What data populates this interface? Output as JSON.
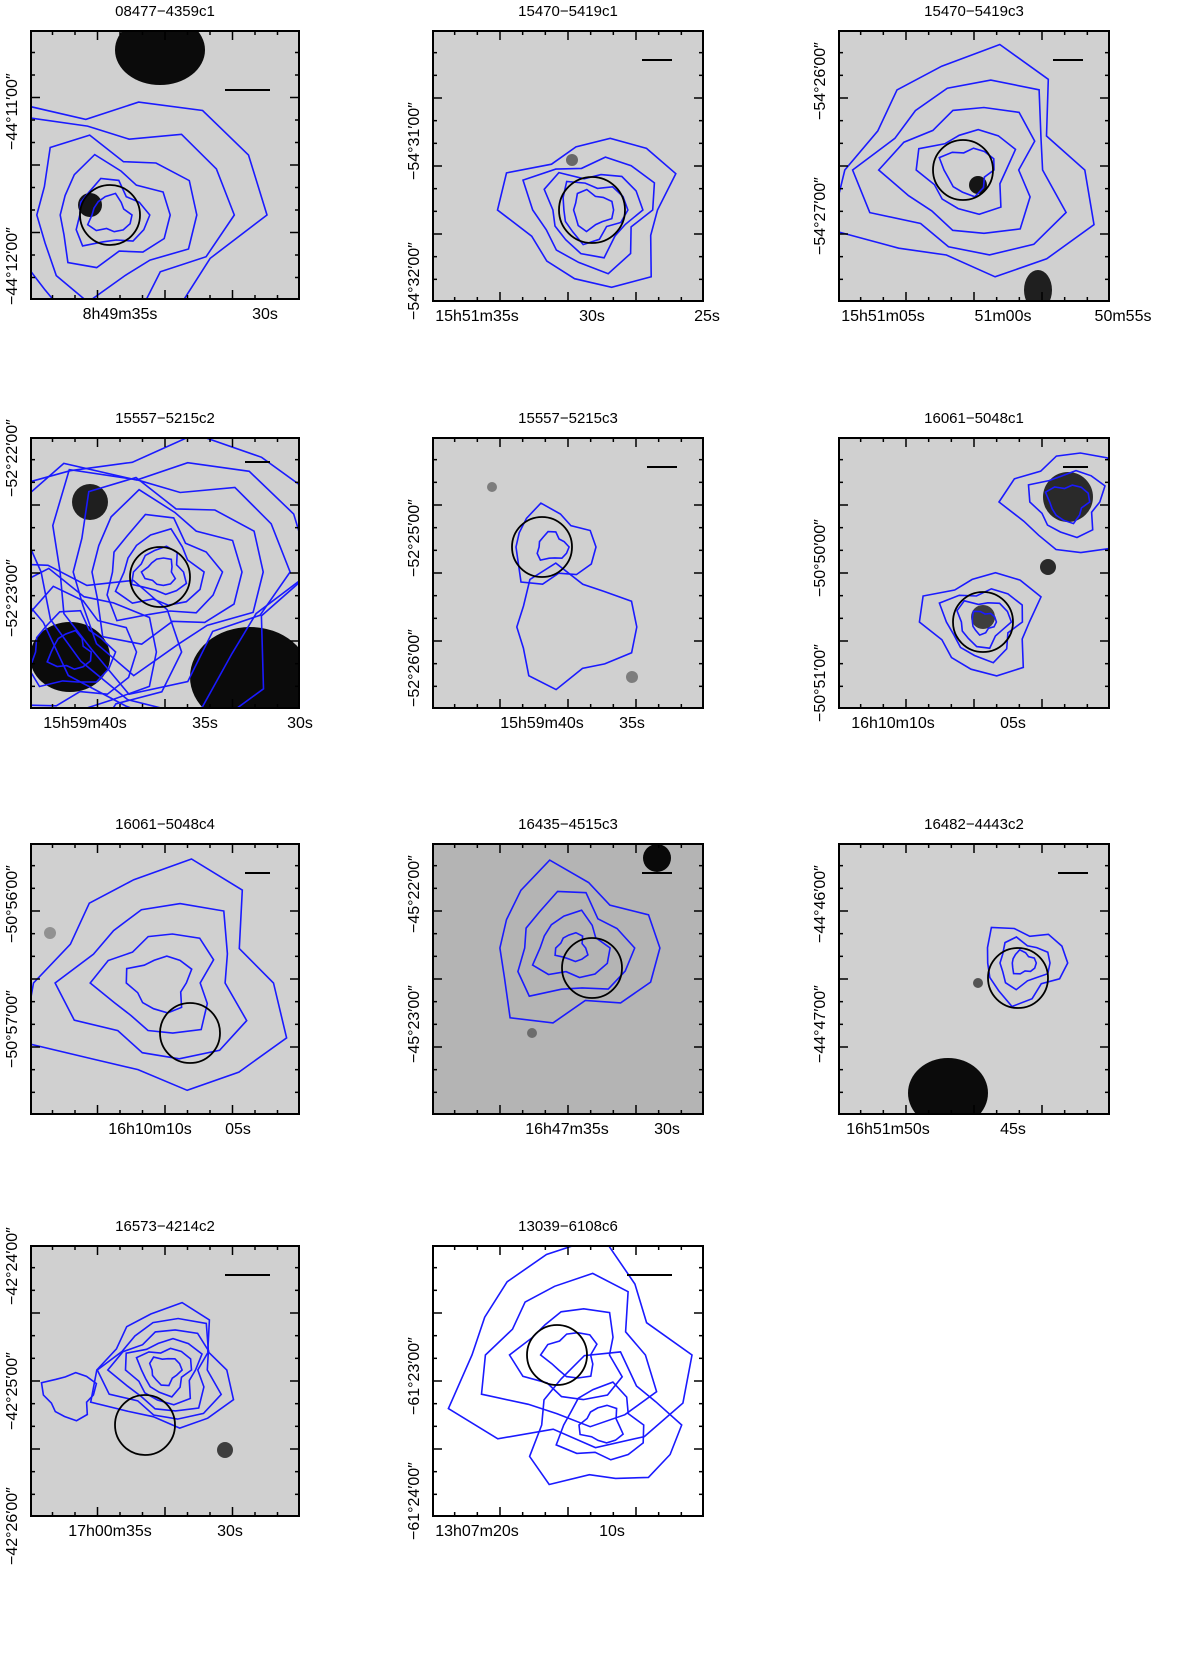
{
  "figure": {
    "panels": [
      {
        "title": "08477−4359c1",
        "ra_labels": [
          "8h49m35s",
          "30s"
        ],
        "dec_labels": [
          "−44°11′00″",
          "−44°12′00″"
        ],
        "background": "light"
      },
      {
        "title": "15470−5419c1",
        "ra_labels": [
          "15h51m35s",
          "30s",
          "25s"
        ],
        "dec_labels": [
          "−54°31′00″",
          "−54°32′00″"
        ],
        "background": "light"
      },
      {
        "title": "15470−5419c3",
        "ra_labels": [
          "15h51m05s",
          "51m00s",
          "50m55s"
        ],
        "dec_labels": [
          "−54°26′00″",
          "−54°27′00″"
        ],
        "background": "light"
      },
      {
        "title": "15557−5215c2",
        "ra_labels": [
          "15h59m40s",
          "35s",
          "30s"
        ],
        "dec_labels": [
          "−52°22′00″",
          "−52°23′00″"
        ],
        "background": "light"
      },
      {
        "title": "15557−5215c3",
        "ra_labels": [
          "15h59m40s",
          "35s"
        ],
        "dec_labels": [
          "−52°25′00″",
          "−52°26′00″"
        ],
        "background": "light"
      },
      {
        "title": "16061−5048c1",
        "ra_labels": [
          "16h10m10s",
          "05s"
        ],
        "dec_labels": [
          "−50°50′00″",
          "−50°51′00″"
        ],
        "background": "light"
      },
      {
        "title": "16061−5048c4",
        "ra_labels": [
          "16h10m10s",
          "05s"
        ],
        "dec_labels": [
          "−50°56′00″",
          "−50°57′00″"
        ],
        "background": "light"
      },
      {
        "title": "16435−4515c3",
        "ra_labels": [
          "16h47m35s",
          "30s"
        ],
        "dec_labels": [
          "−45°22′00″",
          "−45°23′00″"
        ],
        "background": "mid"
      },
      {
        "title": "16482−4443c2",
        "ra_labels": [
          "16h51m50s",
          "45s"
        ],
        "dec_labels": [
          "−44°46′00″",
          "−44°47′00″"
        ],
        "background": "light"
      },
      {
        "title": "16573−4214c2",
        "ra_labels": [
          "17h00m35s",
          "30s"
        ],
        "dec_labels": [
          "−42°24′00″",
          "−42°25′00″",
          "−42°26′00″"
        ],
        "background": "light"
      },
      {
        "title": "13039−6108c6",
        "ra_labels": [
          "13h07m20s",
          "10s"
        ],
        "dec_labels": [
          "−61°23′00″",
          "−61°24′00″"
        ],
        "background": "white"
      }
    ],
    "colors": {
      "contour": "#1a1aff",
      "circle": "#000000",
      "frame": "#000000"
    }
  }
}
